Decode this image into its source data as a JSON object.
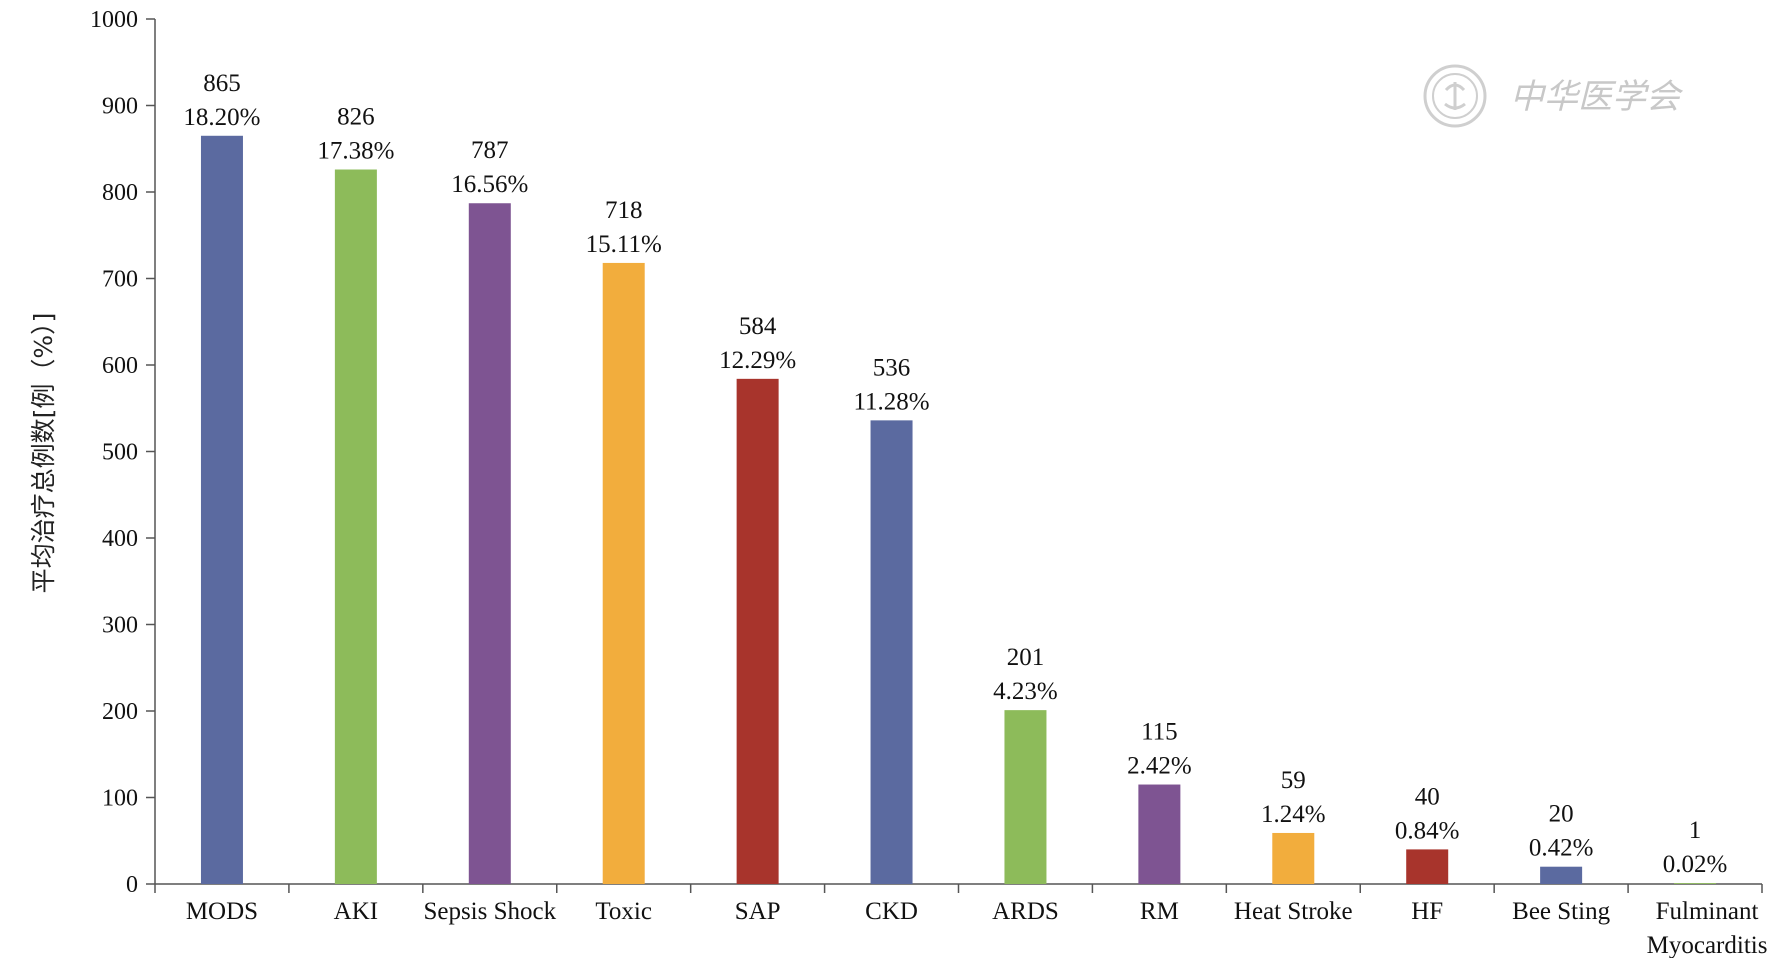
{
  "chart_data": {
    "type": "bar",
    "title": "",
    "xlabel": "",
    "ylabel": "平均治疗总例数[例（%）]",
    "ylim": [
      0,
      1000
    ],
    "yticks": [
      0,
      100,
      200,
      300,
      400,
      500,
      600,
      700,
      800,
      900,
      1000
    ],
    "categories": [
      "MODS",
      "AKI",
      "Sepsis Shock",
      "Toxic",
      "SAP",
      "CKD",
      "ARDS",
      "RM",
      "Heat Stroke",
      "HF",
      "Bee Sting",
      "Fulminant Myocarditis"
    ],
    "values": [
      865,
      826,
      787,
      718,
      584,
      536,
      201,
      115,
      59,
      40,
      20,
      1
    ],
    "percent_labels": [
      "18.20%",
      "17.38%",
      "16.56%",
      "15.11%",
      "12.29%",
      "11.28%",
      "4.23%",
      "2.42%",
      "1.24%",
      "0.84%",
      "0.42%",
      "0.02%"
    ],
    "bar_colors": [
      "#5b6aa0",
      "#8dbb5a",
      "#7e5492",
      "#f2ad3d",
      "#a8342c",
      "#5b6aa0",
      "#8dbb5a",
      "#7e5492",
      "#f2ad3d",
      "#a8342c",
      "#5b6aa0",
      "#8dbb5a"
    ],
    "grid": false,
    "legend": "none"
  },
  "watermark": {
    "text": "中华医学会",
    "icon": "chinese-medical-association-seal"
  }
}
